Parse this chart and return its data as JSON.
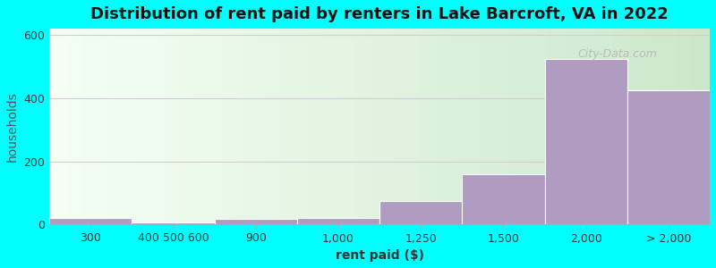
{
  "title": "Distribution of rent paid by renters in Lake Barcroft, VA in 2022",
  "xlabel": "rent paid ($)",
  "ylabel": "households",
  "bar_labels": [
    "300",
    "400 500 600",
    "900",
    "1,000",
    "1,250",
    "1,500",
    "2,000",
    "> 2,000"
  ],
  "bar_values": [
    22,
    8,
    18,
    22,
    75,
    160,
    525,
    425
  ],
  "bar_lefts": [
    0,
    1,
    2,
    3,
    4,
    5,
    6,
    7
  ],
  "bar_widths": [
    1,
    1,
    1,
    1,
    1,
    1,
    1,
    1
  ],
  "bar_color": "#b09cc0",
  "bar_edgecolor": "#ffffff",
  "ylim": [
    0,
    620
  ],
  "yticks": [
    0,
    200,
    400,
    600
  ],
  "background_color": "#00ffff",
  "plot_bg_color_top": "#cce8cc",
  "plot_bg_color_bottom": "#f5fff5",
  "title_fontsize": 13,
  "axis_label_fontsize": 10,
  "tick_fontsize": 9,
  "grid_color": "#d8c8d8",
  "watermark_text": "City-Data.com"
}
